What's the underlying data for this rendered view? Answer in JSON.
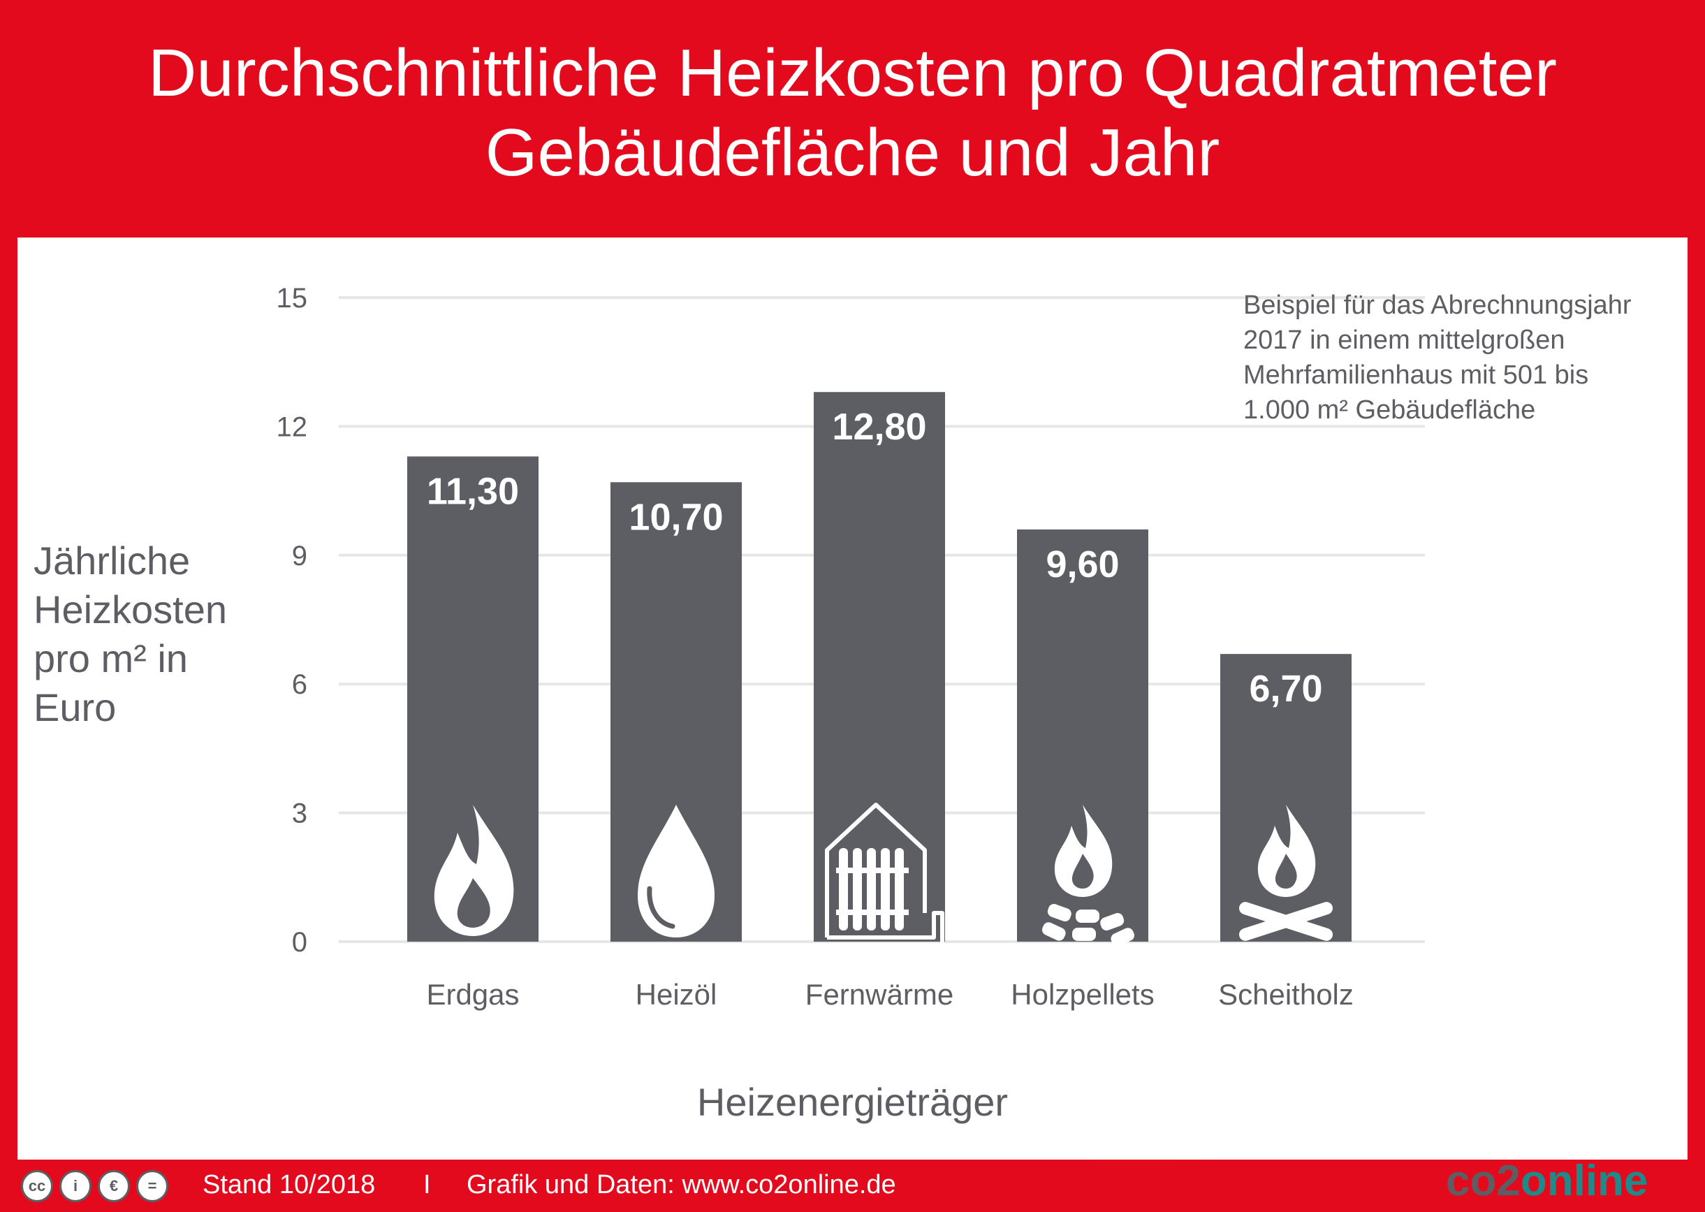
{
  "title_lines": [
    "Durchschnittliche Heizkosten pro Quadratmeter",
    "Gebäudefläche und Jahr"
  ],
  "note_lines": [
    "Beispiel für das Abrechnungsjahr",
    "2017 in einem mittelgroßen",
    "Mehrfamilienhaus mit 501 bis",
    "1.000 m² Gebäudefläche"
  ],
  "colors": {
    "background": "#e40a1d",
    "bar": "#5d5e63",
    "text": "#5d5e63",
    "grid": "#e6e6e6",
    "accent": "#1f8a8a"
  },
  "chart_data": {
    "type": "bar",
    "categories": [
      "Erdgas",
      "Heizöl",
      "Fernwärme",
      "Holzpellets",
      "Scheitholz"
    ],
    "values": [
      11.3,
      10.7,
      12.8,
      9.6,
      6.7
    ],
    "value_labels": [
      "11,30",
      "10,70",
      "12,80",
      "9,60",
      "6,70"
    ],
    "icons": [
      "flame-icon",
      "droplet-icon",
      "radiator-house-icon",
      "pellets-fire-icon",
      "campfire-icon"
    ],
    "ylabel_lines": [
      "Jährliche",
      "Heizkosten",
      "pro m² in",
      "Euro"
    ],
    "xlabel": "Heizenergieträger",
    "ylim": [
      0,
      15
    ],
    "yticks": [
      0,
      3,
      6,
      9,
      12,
      15
    ],
    "grid": true
  },
  "footer": {
    "cc_icons": [
      "cc",
      "i",
      "€",
      "="
    ],
    "stand": "Stand 10/2018",
    "separator": "I",
    "credit": "Grafik und Daten: www.co2online.de",
    "logo_prefix": "co2",
    "logo_suffix": "online"
  }
}
